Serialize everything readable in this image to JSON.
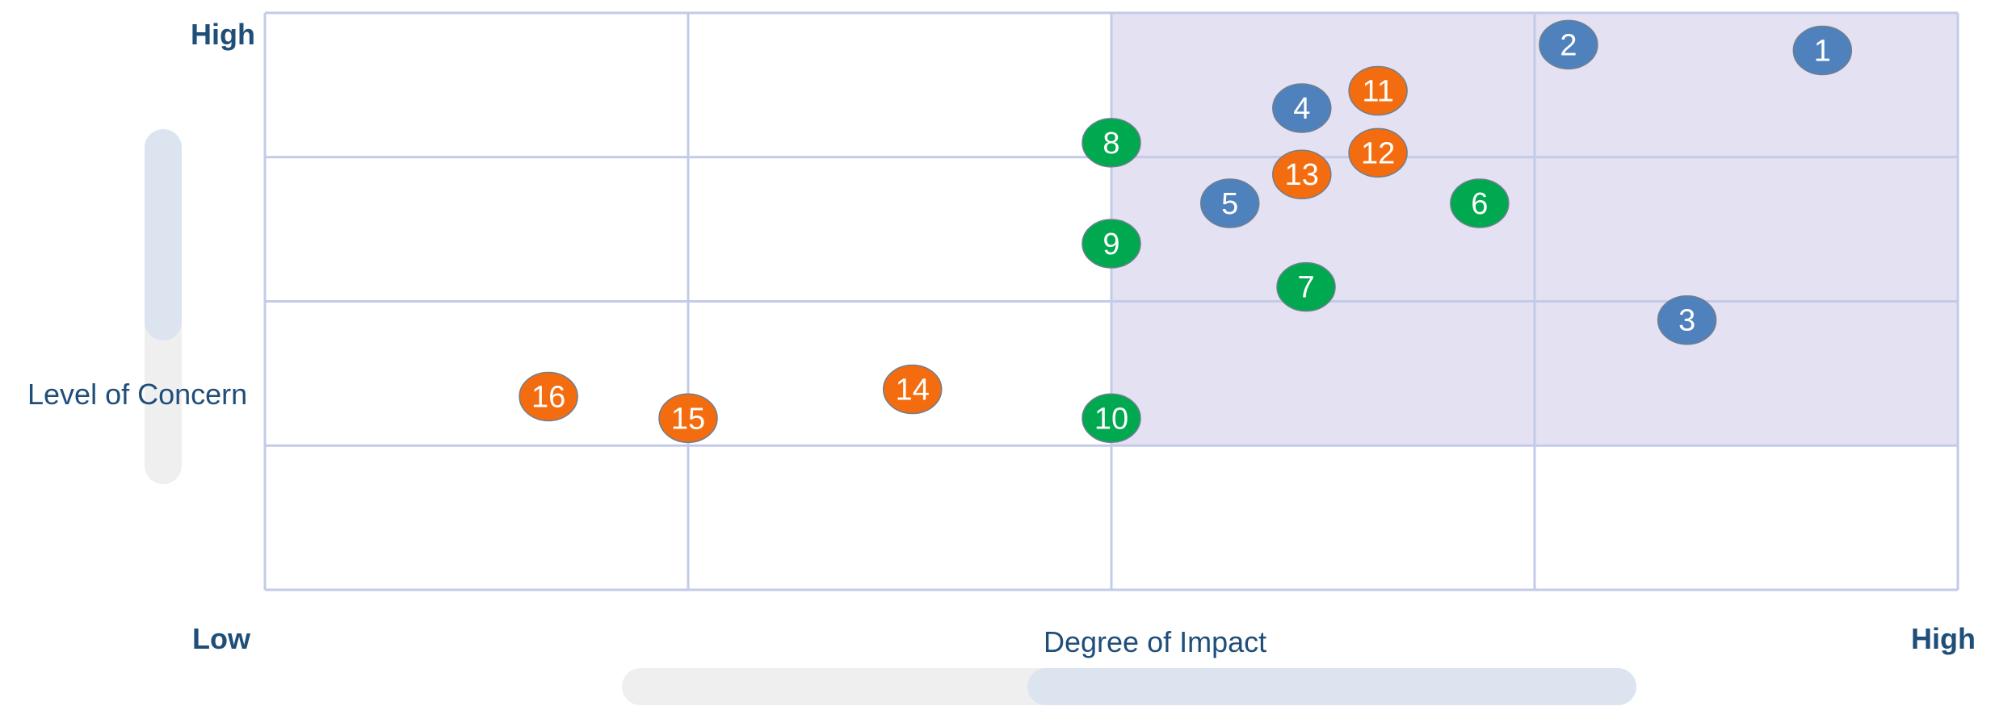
{
  "labels": {
    "y_high": "High",
    "x_low": "Low",
    "x_high": "High",
    "y_title": "Level of Concern",
    "x_title": "Degree of Impact"
  },
  "colors": {
    "blue": "#4f81bd",
    "green": "#00a84f",
    "orange": "#f36c0f",
    "grid": "#c3cbe8",
    "highlight": "#e3e1f2",
    "axis_text": "#1f4e79"
  },
  "chart_data": {
    "type": "scatter",
    "xlabel": "Degree of Impact",
    "ylabel": "Level of Concern",
    "xlim": [
      0,
      4
    ],
    "ylim": [
      0,
      4
    ],
    "grid": true,
    "highlight_region": {
      "x": [
        2,
        4
      ],
      "y": [
        1,
        4
      ]
    },
    "points": [
      {
        "label": "1",
        "x": 3.68,
        "y": 3.74,
        "color": "blue"
      },
      {
        "label": "2",
        "x": 3.08,
        "y": 3.78,
        "color": "blue"
      },
      {
        "label": "3",
        "x": 3.36,
        "y": 1.87,
        "color": "blue"
      },
      {
        "label": "4",
        "x": 2.45,
        "y": 3.34,
        "color": "blue"
      },
      {
        "label": "5",
        "x": 2.28,
        "y": 2.68,
        "color": "blue"
      },
      {
        "label": "6",
        "x": 2.87,
        "y": 2.68,
        "color": "green"
      },
      {
        "label": "7",
        "x": 2.46,
        "y": 2.1,
        "color": "green"
      },
      {
        "label": "8",
        "x": 2.0,
        "y": 3.1,
        "color": "green"
      },
      {
        "label": "9",
        "x": 2.0,
        "y": 2.4,
        "color": "green"
      },
      {
        "label": "10",
        "x": 2.0,
        "y": 1.19,
        "color": "green"
      },
      {
        "label": "11",
        "x": 2.63,
        "y": 3.46,
        "color": "orange"
      },
      {
        "label": "12",
        "x": 2.63,
        "y": 3.03,
        "color": "orange"
      },
      {
        "label": "13",
        "x": 2.45,
        "y": 2.88,
        "color": "orange"
      },
      {
        "label": "14",
        "x": 1.53,
        "y": 1.39,
        "color": "orange"
      },
      {
        "label": "15",
        "x": 1.0,
        "y": 1.19,
        "color": "orange"
      },
      {
        "label": "16",
        "x": 0.67,
        "y": 1.34,
        "color": "orange"
      }
    ]
  }
}
